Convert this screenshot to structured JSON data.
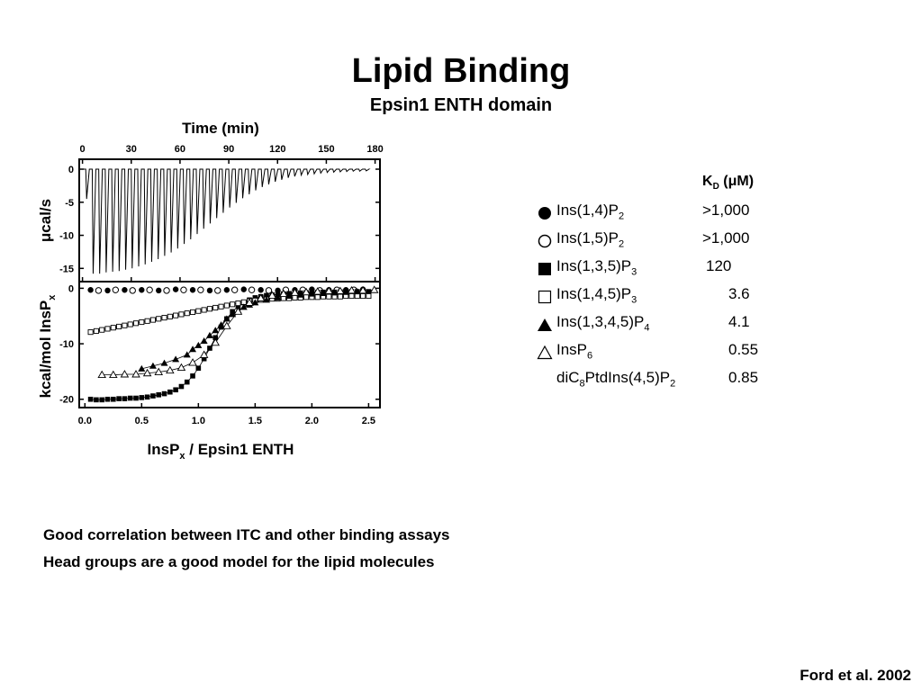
{
  "slide": {
    "title": "Lipid Binding",
    "subtitle": "Epsin1 ENTH domain",
    "notes": [
      "Good correlation between ITC and other binding assays",
      "Head groups are a good model for the lipid molecules"
    ],
    "citation": "Ford et al. 2002"
  },
  "legend": {
    "kd_header": "K",
    "kd_header_sub": "D",
    "kd_header_unit": " (μM)",
    "entries": [
      {
        "symbol": "filled-circle",
        "name": "Ins(1,4)P",
        "name_sub": "2",
        "name_tail": "",
        "kd": ">1,000"
      },
      {
        "symbol": "open-circle",
        "name": "Ins(1,5)P",
        "name_sub": "2",
        "name_tail": "",
        "kd": ">1,000"
      },
      {
        "symbol": "filled-square",
        "name": "Ins(1,3,5)P",
        "name_sub": "3",
        "name_tail": "",
        "kd": "120"
      },
      {
        "symbol": "open-square",
        "name": "Ins(1,4,5)P",
        "name_sub": "3",
        "name_tail": "",
        "kd": "3.6"
      },
      {
        "symbol": "filled-triangle",
        "name": "Ins(1,3,4,5)P",
        "name_sub": "4",
        "name_tail": "",
        "kd": "4.1"
      },
      {
        "symbol": "open-triangle",
        "name": "InsP",
        "name_sub": "6",
        "name_tail": "",
        "kd": "0.55"
      },
      {
        "symbol": "none",
        "name": "diC",
        "name_sub": "8",
        "name_tail": "PtdIns(4,5)P",
        "name_sub2": "2",
        "kd": "0.85"
      }
    ]
  },
  "chart_data": [
    {
      "type": "line",
      "panel": "raw-thermogram",
      "title": "",
      "xlabel": "Time (min)",
      "ylabel": "μcal/s",
      "xlim": [
        -2,
        183
      ],
      "ylim": [
        -17,
        1.5
      ],
      "xticks": [
        0,
        30,
        60,
        90,
        120,
        150,
        180
      ],
      "yticks": [
        0,
        -5,
        -10,
        -15
      ],
      "baseline": 0,
      "injection_times": [
        2,
        6,
        10,
        14,
        18,
        22,
        26,
        30,
        34,
        38,
        42,
        46,
        50,
        54,
        58,
        62,
        66,
        70,
        74,
        78,
        82,
        86,
        90,
        94,
        98,
        102,
        106,
        110,
        114,
        118,
        122,
        126,
        130,
        134,
        138,
        142,
        146,
        150,
        154,
        158,
        162,
        166,
        170,
        174
      ],
      "peak_depths": [
        -4.5,
        -15.8,
        -15.8,
        -15.6,
        -15.5,
        -15.4,
        -15.2,
        -15.0,
        -14.7,
        -14.4,
        -14.0,
        -13.6,
        -13.1,
        -12.6,
        -12.0,
        -11.3,
        -10.6,
        -9.8,
        -9.0,
        -8.2,
        -7.4,
        -6.6,
        -5.8,
        -5.1,
        -4.4,
        -3.8,
        -3.2,
        -2.7,
        -2.3,
        -1.9,
        -1.6,
        -1.3,
        -1.1,
        -0.9,
        -0.8,
        -0.7,
        -0.6,
        -0.5,
        -0.45,
        -0.4,
        -0.35,
        -0.3,
        -0.3,
        -0.25
      ]
    },
    {
      "type": "scatter",
      "panel": "binding-isotherms",
      "title": "",
      "xlabel": "InsPx / Epsin1 ENTH",
      "ylabel": "kcal/mol InsPx",
      "xlim": [
        -0.05,
        2.6
      ],
      "ylim": [
        -21.5,
        1.2
      ],
      "xticks": [
        0.0,
        0.5,
        1.0,
        1.5,
        2.0,
        2.5
      ],
      "yticks": [
        0,
        -10,
        -20
      ],
      "series": [
        {
          "marker": "filled-circle",
          "x": [
            0.05,
            0.2,
            0.35,
            0.5,
            0.65,
            0.8,
            0.95,
            1.1,
            1.25,
            1.4,
            1.55,
            1.7,
            1.85,
            2.0,
            2.15,
            2.3,
            2.45
          ],
          "y": [
            -0.3,
            -0.4,
            -0.3,
            -0.3,
            -0.4,
            -0.2,
            -0.3,
            -0.4,
            -0.3,
            -0.2,
            -0.3,
            -0.4,
            -0.3,
            -0.2,
            -0.3,
            -0.3,
            -0.2
          ]
        },
        {
          "marker": "open-circle",
          "x": [
            0.12,
            0.27,
            0.42,
            0.57,
            0.72,
            0.87,
            1.02,
            1.17,
            1.32,
            1.47,
            1.62,
            1.77,
            1.92,
            2.07,
            2.22,
            2.37
          ],
          "y": [
            -0.4,
            -0.3,
            -0.4,
            -0.3,
            -0.4,
            -0.3,
            -0.3,
            -0.4,
            -0.3,
            -0.3,
            -0.4,
            -0.3,
            -0.3,
            -0.4,
            -0.3,
            -0.3
          ]
        },
        {
          "marker": "filled-square",
          "x": [
            0.05,
            0.1,
            0.15,
            0.2,
            0.25,
            0.3,
            0.35,
            0.4,
            0.45,
            0.5,
            0.55,
            0.6,
            0.65,
            0.7,
            0.75,
            0.8,
            0.85,
            0.9,
            0.95,
            1.0,
            1.05,
            1.1,
            1.15,
            1.2,
            1.25,
            1.3,
            1.35,
            1.4,
            1.45,
            1.5,
            1.55,
            1.6,
            1.65,
            1.7,
            1.75,
            1.8,
            1.85,
            1.9,
            1.95,
            2.0,
            2.05,
            2.1,
            2.15,
            2.2,
            2.25,
            2.3,
            2.35,
            2.4,
            2.45,
            2.5
          ],
          "y": [
            -20.0,
            -20.1,
            -20.1,
            -20.0,
            -20.0,
            -19.9,
            -19.9,
            -19.8,
            -19.8,
            -19.7,
            -19.6,
            -19.4,
            -19.2,
            -19.0,
            -18.7,
            -18.3,
            -17.7,
            -16.9,
            -15.8,
            -14.4,
            -12.7,
            -10.8,
            -8.9,
            -7.0,
            -5.5,
            -4.2,
            -3.3,
            -2.6,
            -2.1,
            -1.7,
            -1.5,
            -1.3,
            -1.2,
            -1.1,
            -1.0,
            -0.95,
            -0.9,
            -0.85,
            -0.8,
            -0.8,
            -0.75,
            -0.7,
            -0.7,
            -0.7,
            -0.65,
            -0.65,
            -0.6,
            -0.6,
            -0.6,
            -0.6
          ]
        },
        {
          "marker": "open-square",
          "x": [
            0.05,
            0.1,
            0.15,
            0.2,
            0.25,
            0.3,
            0.35,
            0.4,
            0.45,
            0.5,
            0.55,
            0.6,
            0.65,
            0.7,
            0.75,
            0.8,
            0.85,
            0.9,
            0.95,
            1.0,
            1.05,
            1.1,
            1.15,
            1.2,
            1.25,
            1.3,
            1.35,
            1.4,
            1.45,
            1.5,
            1.55,
            1.6,
            1.65,
            1.7,
            1.75,
            1.8,
            1.85,
            1.9,
            1.95,
            2.0,
            2.05,
            2.1,
            2.15,
            2.2,
            2.25,
            2.3,
            2.35,
            2.4,
            2.45,
            2.5
          ],
          "y": [
            -7.9,
            -7.7,
            -7.5,
            -7.3,
            -7.1,
            -6.9,
            -6.7,
            -6.5,
            -6.3,
            -6.1,
            -5.9,
            -5.7,
            -5.5,
            -5.3,
            -5.1,
            -4.9,
            -4.7,
            -4.5,
            -4.3,
            -4.1,
            -3.9,
            -3.7,
            -3.5,
            -3.3,
            -3.1,
            -2.9,
            -2.7,
            -2.5,
            -2.3,
            -2.2,
            -2.1,
            -2.0,
            -1.9,
            -1.9,
            -1.8,
            -1.8,
            -1.7,
            -1.7,
            -1.6,
            -1.6,
            -1.6,
            -1.5,
            -1.5,
            -1.5,
            -1.5,
            -1.4,
            -1.4,
            -1.4,
            -1.4,
            -1.4
          ]
        },
        {
          "marker": "filled-triangle",
          "x": [
            0.5,
            0.6,
            0.7,
            0.8,
            0.9,
            0.95,
            1.0,
            1.05,
            1.1,
            1.15,
            1.2,
            1.25,
            1.3,
            1.35,
            1.4,
            1.45,
            1.5,
            1.6,
            1.7,
            1.8,
            1.9,
            2.0,
            2.1,
            2.2,
            2.3,
            2.4
          ],
          "y": [
            -14.5,
            -14.0,
            -13.5,
            -12.8,
            -12.0,
            -11.0,
            -10.3,
            -9.5,
            -8.5,
            -7.6,
            -6.6,
            -5.5,
            -4.7,
            -4.0,
            -3.4,
            -3.0,
            -2.6,
            -2.1,
            -1.7,
            -1.4,
            -1.2,
            -1.0,
            -0.9,
            -0.8,
            -0.7,
            -0.6
          ]
        },
        {
          "marker": "open-triangle",
          "x": [
            0.15,
            0.25,
            0.35,
            0.45,
            0.55,
            0.65,
            0.75,
            0.85,
            0.95,
            1.05,
            1.15,
            1.25,
            1.35,
            1.45,
            1.55,
            1.65,
            1.75,
            1.85,
            1.95,
            2.05,
            2.15,
            2.25,
            2.35,
            2.45,
            2.55
          ],
          "y": [
            -15.6,
            -15.6,
            -15.5,
            -15.5,
            -15.3,
            -15.1,
            -14.8,
            -14.3,
            -13.4,
            -12.0,
            -9.8,
            -6.8,
            -4.2,
            -2.6,
            -1.8,
            -1.3,
            -1.0,
            -0.8,
            -0.7,
            -0.6,
            -0.5,
            -0.5,
            -0.4,
            -0.4,
            -0.3
          ]
        }
      ]
    }
  ]
}
